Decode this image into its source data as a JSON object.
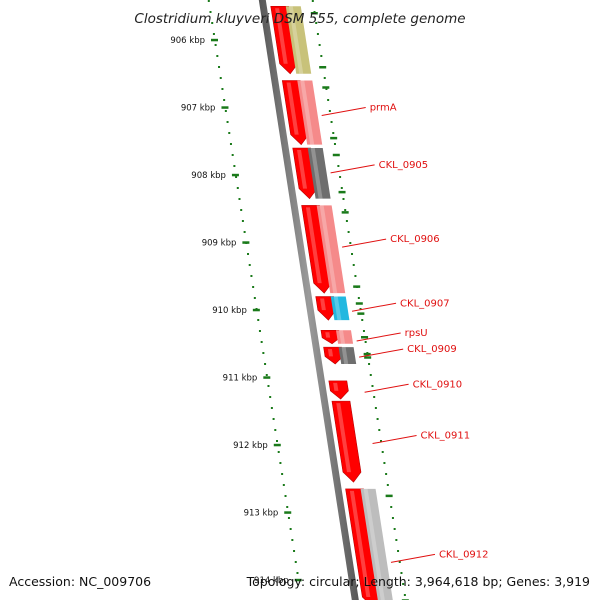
{
  "title": "Clostridium kluyveri DSM 555, complete genome",
  "accession": "Accession: NC_009706",
  "summary": "Topology: circular; Length: 3,964,618 bp; Genes: 3,919",
  "scale_ticks": [
    {
      "label": "906 kbp",
      "kbp": 906
    },
    {
      "label": "907 kbp",
      "kbp": 907
    },
    {
      "label": "908 kbp",
      "kbp": 908
    },
    {
      "label": "909 kbp",
      "kbp": 909
    },
    {
      "label": "910 kbp",
      "kbp": 910
    },
    {
      "label": "911 kbp",
      "kbp": 911
    },
    {
      "label": "912 kbp",
      "kbp": 912
    },
    {
      "label": "913 kbp",
      "kbp": 913
    },
    {
      "label": "914 kbp",
      "kbp": 914
    }
  ],
  "gene_labels": [
    {
      "name": "prmA",
      "kbp": 907.0
    },
    {
      "name": "CKL_0905",
      "kbp": 907.85
    },
    {
      "name": "CKL_0906",
      "kbp": 908.95
    },
    {
      "name": "CKL_0907",
      "kbp": 909.9
    },
    {
      "name": "rpsU",
      "kbp": 910.34
    },
    {
      "name": "CKL_0909",
      "kbp": 910.58
    },
    {
      "name": "CKL_0910",
      "kbp": 911.1
    },
    {
      "name": "CKL_0911",
      "kbp": 911.86
    },
    {
      "name": "CKL_0912",
      "kbp": 913.62
    }
  ],
  "genes": [
    {
      "start": 905.5,
      "end": 906.5,
      "color": "#ff0000"
    },
    {
      "start": 906.6,
      "end": 907.55,
      "color": "#ff0000"
    },
    {
      "start": 907.6,
      "end": 908.35,
      "color": "#ff0000"
    },
    {
      "start": 908.45,
      "end": 909.75,
      "color": "#ff0000"
    },
    {
      "start": 909.8,
      "end": 910.15,
      "color": "#ff0000"
    },
    {
      "start": 910.3,
      "end": 910.5,
      "color": "#ff0000"
    },
    {
      "start": 910.55,
      "end": 910.8,
      "color": "#ff0000"
    },
    {
      "start": 911.05,
      "end": 911.32,
      "color": "#ff0000"
    },
    {
      "start": 911.35,
      "end": 912.55,
      "color": "#ff0000"
    },
    {
      "start": 912.65,
      "end": 914.4,
      "color": "#ff0000"
    }
  ],
  "features": [
    {
      "start": 905.5,
      "end": 906.5,
      "color": "#c8c27a"
    },
    {
      "start": 906.6,
      "end": 907.55,
      "color": "#f58a8a"
    },
    {
      "start": 907.6,
      "end": 908.35,
      "color": "#6e6e6e"
    },
    {
      "start": 908.45,
      "end": 909.75,
      "color": "#f58a8a"
    },
    {
      "start": 909.8,
      "end": 910.15,
      "color": "#22b8e0"
    },
    {
      "start": 910.3,
      "end": 910.5,
      "color": "#f58a8a"
    },
    {
      "start": 910.55,
      "end": 910.8,
      "color": "#6e6e6e"
    },
    {
      "start": 912.65,
      "end": 914.4,
      "color": "#bdbdbd"
    }
  ]
}
